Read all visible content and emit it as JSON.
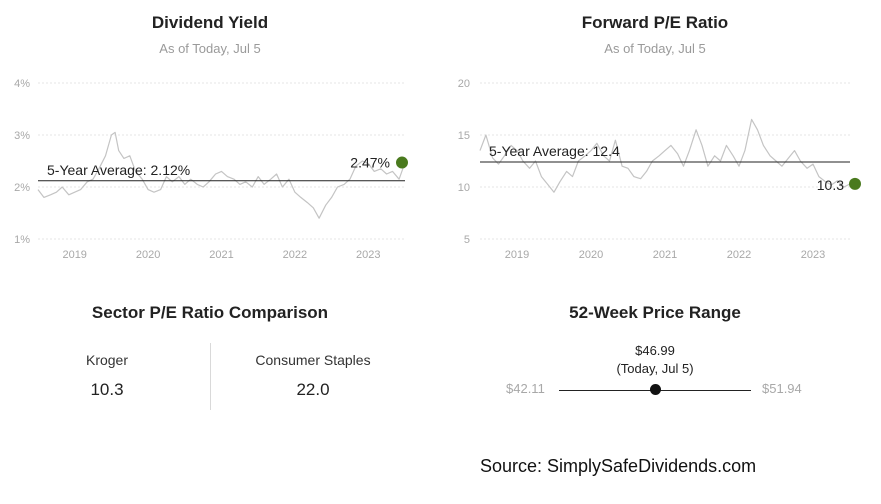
{
  "dividend_panel": {
    "title": "Dividend Yield",
    "subtitle": "As of Today, Jul 5"
  },
  "pe_panel": {
    "title": "Forward P/E Ratio",
    "subtitle": "As of Today, Jul 5"
  },
  "sector_panel": {
    "title": "Sector P/E Ratio Comparison",
    "left": {
      "name": "Kroger",
      "value": "10.3"
    },
    "right": {
      "name": "Consumer Staples",
      "value": "22.0"
    }
  },
  "range_panel": {
    "title": "52-Week Price Range",
    "current_price": "$46.99",
    "current_note": "(Today, Jul 5)",
    "low": "$42.11",
    "high": "$51.94",
    "current_fraction": 0.504
  },
  "source": "Source: SimplySafeDividends.com",
  "colors": {
    "line": "#c4c4c4",
    "current_dot": "#4a7a1e",
    "avg_line": "#222222",
    "grid": "#e6e6e6"
  },
  "chart_data": [
    {
      "type": "line",
      "title": "Dividend Yield",
      "subtitle": "As of Today, Jul 5",
      "y_ticks": [
        "1%",
        "2%",
        "3%",
        "4%"
      ],
      "ylim": [
        1,
        4
      ],
      "x_ticks": [
        "2019",
        "2020",
        "2021",
        "2022",
        "2023"
      ],
      "xlim": [
        2018.5,
        2023.5
      ],
      "average": {
        "label": "5-Year Average: 2.12%",
        "value": 2.12
      },
      "current": {
        "label": "2.47%",
        "x": 2023.5,
        "value": 2.47
      },
      "series": [
        {
          "x": [
            2018.5,
            2018.58,
            2018.67,
            2018.75,
            2018.83,
            2018.92,
            2019.0,
            2019.08,
            2019.17,
            2019.25,
            2019.33,
            2019.42,
            2019.5,
            2019.55,
            2019.6,
            2019.67,
            2019.75,
            2019.83,
            2019.92,
            2020.0,
            2020.08,
            2020.17,
            2020.25,
            2020.33,
            2020.42,
            2020.5,
            2020.58,
            2020.67,
            2020.75,
            2020.83,
            2020.92,
            2021.0,
            2021.08,
            2021.17,
            2021.25,
            2021.33,
            2021.42,
            2021.5,
            2021.58,
            2021.67,
            2021.75,
            2021.83,
            2021.92,
            2022.0,
            2022.08,
            2022.17,
            2022.25,
            2022.33,
            2022.42,
            2022.5,
            2022.58,
            2022.67,
            2022.75,
            2022.83,
            2022.92,
            2023.0,
            2023.08,
            2023.17,
            2023.25,
            2023.33,
            2023.42,
            2023.5
          ],
          "values": [
            1.95,
            1.8,
            1.85,
            1.9,
            2.0,
            1.85,
            1.9,
            1.95,
            2.1,
            2.15,
            2.35,
            2.6,
            3.0,
            3.05,
            2.7,
            2.55,
            2.6,
            2.3,
            2.15,
            1.95,
            1.9,
            1.95,
            2.2,
            2.1,
            2.2,
            2.05,
            2.15,
            2.05,
            2.0,
            2.1,
            2.25,
            2.3,
            2.2,
            2.15,
            2.05,
            2.1,
            2.0,
            2.2,
            2.05,
            2.15,
            2.25,
            2.0,
            2.15,
            1.9,
            1.8,
            1.7,
            1.6,
            1.4,
            1.65,
            1.8,
            2.0,
            2.05,
            2.15,
            2.4,
            2.5,
            2.45,
            2.3,
            2.35,
            2.25,
            2.3,
            2.15,
            2.47
          ]
        }
      ]
    },
    {
      "type": "line",
      "title": "Forward P/E Ratio",
      "subtitle": "As of Today, Jul 5",
      "y_ticks": [
        "5",
        "10",
        "15",
        "20"
      ],
      "ylim": [
        5,
        20
      ],
      "x_ticks": [
        "2019",
        "2020",
        "2021",
        "2022",
        "2023"
      ],
      "xlim": [
        2018.5,
        2023.5
      ],
      "average": {
        "label": "5-Year Average: 12.4",
        "value": 12.4
      },
      "current": {
        "label": "10.3",
        "x": 2023.5,
        "value": 10.3
      },
      "series": [
        {
          "x": [
            2018.5,
            2018.58,
            2018.67,
            2018.75,
            2018.83,
            2018.92,
            2019.0,
            2019.08,
            2019.17,
            2019.25,
            2019.33,
            2019.42,
            2019.5,
            2019.58,
            2019.67,
            2019.75,
            2019.83,
            2019.92,
            2020.0,
            2020.08,
            2020.17,
            2020.25,
            2020.33,
            2020.42,
            2020.5,
            2020.58,
            2020.67,
            2020.75,
            2020.83,
            2020.92,
            2021.0,
            2021.08,
            2021.17,
            2021.25,
            2021.33,
            2021.42,
            2021.5,
            2021.58,
            2021.67,
            2021.75,
            2021.83,
            2021.92,
            2022.0,
            2022.08,
            2022.17,
            2022.25,
            2022.33,
            2022.42,
            2022.5,
            2022.58,
            2022.67,
            2022.75,
            2022.83,
            2022.92,
            2023.0,
            2023.08,
            2023.17,
            2023.25,
            2023.33,
            2023.42,
            2023.5
          ],
          "values": [
            13.5,
            15.0,
            12.8,
            12.2,
            13.0,
            14.0,
            13.5,
            12.5,
            11.8,
            12.5,
            11.0,
            10.2,
            9.5,
            10.5,
            11.5,
            11.0,
            12.5,
            13.0,
            13.5,
            14.2,
            13.0,
            12.5,
            14.5,
            12.0,
            11.8,
            11.0,
            10.8,
            11.5,
            12.5,
            13.0,
            13.5,
            14.0,
            13.2,
            12.0,
            13.5,
            15.5,
            14.0,
            12.0,
            13.0,
            12.5,
            14.0,
            13.0,
            12.0,
            13.5,
            16.5,
            15.5,
            14.0,
            13.0,
            12.5,
            12.0,
            12.8,
            13.5,
            12.5,
            11.8,
            12.2,
            11.0,
            10.5,
            10.2,
            10.6,
            10.0,
            10.3
          ]
        }
      ]
    }
  ]
}
